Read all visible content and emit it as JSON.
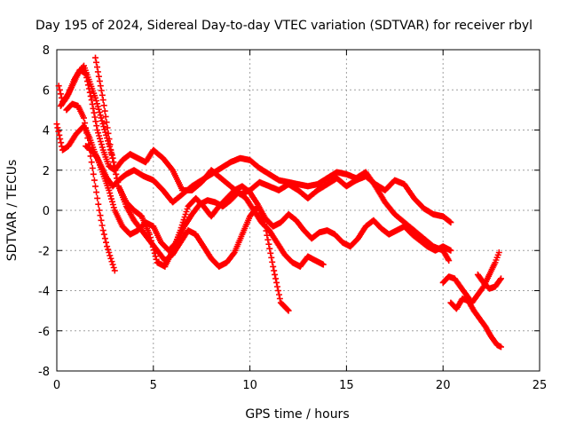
{
  "chart_data": {
    "type": "scatter",
    "title": "Day 195 of 2024, Sidereal Day-to-day VTEC variation (SDTVAR) for receiver rbyl",
    "xlabel": "GPS time / hours",
    "ylabel": "SDTVAR / TECUs",
    "xlim": [
      0,
      25
    ],
    "ylim": [
      -8,
      8
    ],
    "xticks": [
      0,
      5,
      10,
      15,
      20,
      25
    ],
    "yticks": [
      -8,
      -6,
      -4,
      -2,
      0,
      2,
      4,
      6,
      8
    ],
    "grid": true,
    "marker": "plus",
    "color": "#ff0000",
    "series": [
      {
        "x": [
          0.0,
          0.3,
          0.6,
          1.0,
          1.4,
          1.7,
          2.0,
          2.3,
          2.6,
          2.9,
          3.2,
          3.6,
          4.0,
          4.5,
          5.0,
          5.5,
          6.0,
          6.5,
          7.0,
          7.5,
          8.0,
          8.5,
          9.0,
          9.5,
          10.0,
          10.5,
          11.0,
          11.5,
          12.0,
          12.5,
          13.0,
          13.5,
          14.0,
          14.5,
          15.0,
          15.5,
          16.0,
          16.5,
          17.0,
          17.5,
          18.0,
          18.5,
          19.0,
          19.5,
          20.0,
          20.3
        ],
        "y": [
          4.3,
          3.0,
          3.2,
          3.8,
          4.2,
          3.6,
          2.8,
          2.2,
          1.6,
          1.2,
          1.5,
          1.8,
          2.0,
          1.7,
          1.5,
          1.0,
          0.4,
          0.8,
          1.2,
          1.5,
          1.8,
          2.1,
          2.4,
          2.6,
          2.5,
          2.1,
          1.8,
          1.5,
          1.4,
          1.3,
          1.2,
          1.3,
          1.6,
          1.9,
          1.8,
          1.6,
          1.9,
          1.2,
          0.4,
          -0.2,
          -0.6,
          -1.0,
          -1.4,
          -1.8,
          -2.0,
          -2.5
        ]
      },
      {
        "x": [
          0.1,
          0.3,
          0.6,
          0.9,
          1.2,
          1.5,
          1.8,
          2.1,
          2.4,
          2.7,
          3.0,
          3.4,
          3.8,
          4.2,
          4.6,
          5.0,
          5.5,
          6.0,
          6.5,
          7.0,
          7.5,
          8.0,
          8.5,
          9.0,
          9.5,
          10.0,
          10.5,
          11.0,
          11.5,
          12.0,
          12.5,
          13.0,
          13.5,
          14.0,
          14.5,
          15.0,
          15.5,
          16.0,
          16.5,
          17.0,
          17.5,
          18.0,
          18.5,
          19.0,
          19.5,
          20.0,
          20.4
        ],
        "y": [
          6.2,
          5.4,
          5.8,
          6.5,
          7.0,
          6.8,
          5.5,
          4.0,
          3.0,
          2.2,
          2.0,
          2.5,
          2.8,
          2.6,
          2.4,
          3.0,
          2.6,
          2.0,
          1.0,
          1.0,
          1.4,
          2.0,
          1.6,
          1.2,
          0.8,
          1.0,
          1.4,
          1.2,
          1.0,
          1.3,
          1.0,
          0.6,
          1.0,
          1.3,
          1.6,
          1.2,
          1.5,
          1.7,
          1.3,
          1.0,
          1.5,
          1.3,
          0.6,
          0.1,
          -0.2,
          -0.3,
          -0.6
        ]
      },
      {
        "x": [
          0.2,
          0.5,
          0.8,
          1.1,
          1.4,
          1.7,
          2.0,
          2.3,
          2.6,
          2.9,
          3.2,
          3.6,
          4.0,
          4.4,
          4.8,
          5.2,
          5.6,
          6.0,
          6.4,
          6.8,
          7.2,
          7.6,
          8.0,
          8.4,
          8.8,
          9.2,
          9.6,
          10.0,
          10.4,
          10.8,
          11.2,
          11.6,
          12.0
        ],
        "y": [
          5.2,
          5.6,
          6.2,
          6.8,
          7.2,
          6.4,
          5.6,
          4.6,
          3.6,
          2.6,
          1.2,
          0.2,
          -0.5,
          -1.0,
          -1.5,
          -2.0,
          -2.5,
          -2.2,
          -1.6,
          -1.0,
          -1.2,
          -1.8,
          -2.4,
          -2.8,
          -2.6,
          -2.1,
          -1.2,
          -0.3,
          0.2,
          -0.8,
          -2.8,
          -4.6,
          -5.0
        ]
      },
      {
        "x": [
          0.5,
          0.8,
          1.1,
          1.4,
          1.6,
          1.8,
          2.0,
          2.2,
          2.4,
          2.6,
          2.8,
          3.0
        ],
        "y": [
          5.0,
          5.3,
          5.2,
          4.6,
          3.6,
          2.4,
          1.2,
          0.0,
          -1.0,
          -1.8,
          -2.4,
          -3.0
        ]
      },
      {
        "x": [
          1.5,
          1.8,
          2.1,
          2.4,
          2.7,
          3.0,
          3.4,
          3.8,
          4.2,
          4.6,
          5.0,
          5.4,
          5.8,
          6.2,
          6.6,
          7.0,
          7.4,
          7.8,
          8.2,
          8.6,
          9.0,
          9.4,
          9.8,
          10.2,
          10.6,
          11.0,
          11.4,
          11.8,
          12.2,
          12.6,
          13.0,
          13.4,
          13.8
        ],
        "y": [
          3.2,
          3.0,
          2.6,
          1.8,
          1.0,
          0.0,
          -0.8,
          -1.2,
          -1.0,
          -0.6,
          -0.8,
          -1.6,
          -2.0,
          -1.6,
          -0.8,
          -0.2,
          0.3,
          0.5,
          0.4,
          0.2,
          0.5,
          0.9,
          0.6,
          0.0,
          -0.6,
          -1.0,
          -1.6,
          -2.2,
          -2.6,
          -2.8,
          -2.3,
          -2.5,
          -2.7
        ]
      },
      {
        "x": [
          2.0,
          2.4,
          2.8,
          3.2,
          3.6,
          4.0,
          4.4,
          4.8,
          5.2,
          5.6,
          6.0,
          6.4,
          6.8,
          7.2,
          7.6,
          8.0,
          8.4,
          8.8,
          9.2,
          9.6,
          10.0,
          10.4,
          10.8,
          11.2,
          11.6,
          12.0,
          12.4,
          12.8,
          13.2,
          13.6,
          14.0,
          14.4,
          14.8,
          15.2,
          15.6,
          16.0,
          16.4,
          16.8,
          17.2,
          17.6,
          18.0,
          18.4,
          18.8,
          19.2,
          19.6,
          20.0,
          20.4
        ],
        "y": [
          7.6,
          5.5,
          3.0,
          1.2,
          0.4,
          0.0,
          -0.3,
          -1.2,
          -2.6,
          -2.8,
          -2.0,
          -1.0,
          0.2,
          0.6,
          0.2,
          -0.3,
          0.2,
          0.6,
          1.0,
          1.2,
          0.9,
          0.3,
          -0.4,
          -0.8,
          -0.6,
          -0.2,
          -0.5,
          -1.0,
          -1.4,
          -1.1,
          -1.0,
          -1.2,
          -1.6,
          -1.8,
          -1.4,
          -0.8,
          -0.5,
          -0.9,
          -1.2,
          -1.0,
          -0.8,
          -1.2,
          -1.5,
          -1.8,
          -2.0,
          -1.8,
          -2.0
        ]
      },
      {
        "x": [
          20.0,
          20.3,
          20.6,
          20.9,
          21.2,
          21.5,
          21.8,
          22.1,
          22.4,
          22.7,
          22.9
        ],
        "y": [
          -3.6,
          -3.3,
          -3.4,
          -3.8,
          -4.2,
          -4.6,
          -4.2,
          -3.8,
          -3.2,
          -2.6,
          -2.1
        ]
      },
      {
        "x": [
          20.4,
          20.7,
          21.0,
          21.3,
          21.6,
          21.9,
          22.2,
          22.5,
          22.8,
          23.0
        ],
        "y": [
          -4.6,
          -4.9,
          -4.4,
          -4.5,
          -5.0,
          -5.4,
          -5.8,
          -6.3,
          -6.7,
          -6.8
        ]
      },
      {
        "x": [
          21.8,
          22.1,
          22.4,
          22.7,
          23.0
        ],
        "y": [
          -3.2,
          -3.6,
          -3.9,
          -3.8,
          -3.4
        ]
      }
    ]
  }
}
